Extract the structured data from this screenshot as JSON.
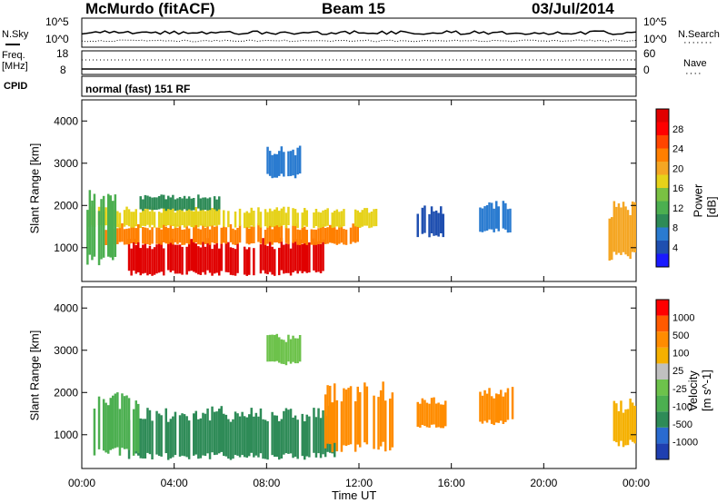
{
  "header": {
    "station": "McMurdo (fitACF)",
    "beam": "Beam 15",
    "date": "03/Jul/2014"
  },
  "aux_panels": {
    "nsky_label": "N.Sky",
    "nsky_ticks": [
      "10^5",
      "10^0"
    ],
    "nsearch_label": "N.Search",
    "nsearch_ticks": [
      "10^5",
      "10^0"
    ],
    "freq_label_1": "Freq.",
    "freq_label_2": "[MHz]",
    "freq_ticks": [
      "18",
      "8"
    ],
    "nave_label": "Nave",
    "nave_ticks": [
      "60",
      "0"
    ],
    "cpid_label": "CPID",
    "cpid_value": "normal (fast) 151 RF"
  },
  "colors": {
    "power_scale": [
      "#1a1aff",
      "#1f4fb0",
      "#2a7bd0",
      "#2e8b57",
      "#4caf50",
      "#7ac143",
      "#e6d21a",
      "#f5a623",
      "#ff7f00",
      "#ff4500",
      "#ff0000",
      "#e00000"
    ],
    "velocity_scale": [
      "#1f3fb0",
      "#2a6bd0",
      "#2e8b57",
      "#4caf50",
      "#6dc24b",
      "#c0c0c0",
      "#f5b000",
      "#ff8c00",
      "#ff5a00",
      "#ff0000"
    ]
  },
  "chart_data": [
    {
      "type": "heatmap",
      "panel": "power",
      "ylabel": "Slant Range [km]",
      "ylim": [
        200,
        4500
      ],
      "yticks": [
        1000,
        2000,
        3000,
        4000
      ],
      "xlabel": "Time UT",
      "xticks": [
        "00:00",
        "04:00",
        "08:00",
        "12:00",
        "16:00",
        "20:00",
        "00:00"
      ],
      "xlim_hours": [
        0,
        24
      ],
      "colorbar": {
        "label": "Power [dB]",
        "ticks": [
          "28",
          "24",
          "20",
          "16",
          "12",
          "8",
          "4"
        ]
      },
      "regions": [
        {
          "t0": 2.0,
          "t1": 10.5,
          "r0": 400,
          "r1": 1100,
          "level": 11
        },
        {
          "t0": 1.0,
          "t1": 12.0,
          "r0": 1100,
          "r1": 1500,
          "level": 8
        },
        {
          "t0": 0.3,
          "t1": 12.8,
          "r0": 1500,
          "r1": 1900,
          "level": 6
        },
        {
          "t0": 0.2,
          "t1": 1.5,
          "r0": 700,
          "r1": 2100,
          "level": 4
        },
        {
          "t0": 2.5,
          "t1": 6.0,
          "r0": 1900,
          "r1": 2200,
          "level": 3
        },
        {
          "t0": 8.0,
          "t1": 9.5,
          "r0": 2700,
          "r1": 3300,
          "level": 2
        },
        {
          "t0": 14.5,
          "t1": 15.7,
          "r0": 1300,
          "r1": 1900,
          "level": 1
        },
        {
          "t0": 17.2,
          "t1": 18.6,
          "r0": 1400,
          "r1": 2000,
          "level": 2
        },
        {
          "t0": 22.8,
          "t1": 24.0,
          "r0": 800,
          "r1": 1900,
          "level": 7
        }
      ]
    },
    {
      "type": "heatmap",
      "panel": "velocity",
      "ylabel": "Slant Range [km]",
      "ylim": [
        200,
        4500
      ],
      "yticks": [
        1000,
        2000,
        3000,
        4000
      ],
      "xlabel": "Time UT",
      "xticks": [
        "00:00",
        "04:00",
        "08:00",
        "12:00",
        "16:00",
        "20:00",
        "00:00"
      ],
      "xlim_hours": [
        0,
        24
      ],
      "colorbar": {
        "label": "Velocity [m s^-1]",
        "ticks": [
          "1000",
          "500",
          "100",
          "25",
          "-25",
          "-100",
          "-500",
          "-1000"
        ]
      },
      "regions": [
        {
          "t0": 2.0,
          "t1": 11.0,
          "r0": 500,
          "r1": 1500,
          "level": 2
        },
        {
          "t0": 0.5,
          "t1": 2.5,
          "r0": 600,
          "r1": 1800,
          "level": 3
        },
        {
          "t0": 10.5,
          "t1": 13.5,
          "r0": 700,
          "r1": 2000,
          "level": 7
        },
        {
          "t0": 14.5,
          "t1": 15.8,
          "r0": 1200,
          "r1": 1800,
          "level": 7
        },
        {
          "t0": 17.2,
          "t1": 18.7,
          "r0": 1300,
          "r1": 2000,
          "level": 7
        },
        {
          "t0": 23.0,
          "t1": 24.0,
          "r0": 800,
          "r1": 1700,
          "level": 6
        },
        {
          "t0": 8.0,
          "t1": 9.5,
          "r0": 2700,
          "r1": 3300,
          "level": 4
        }
      ]
    }
  ]
}
